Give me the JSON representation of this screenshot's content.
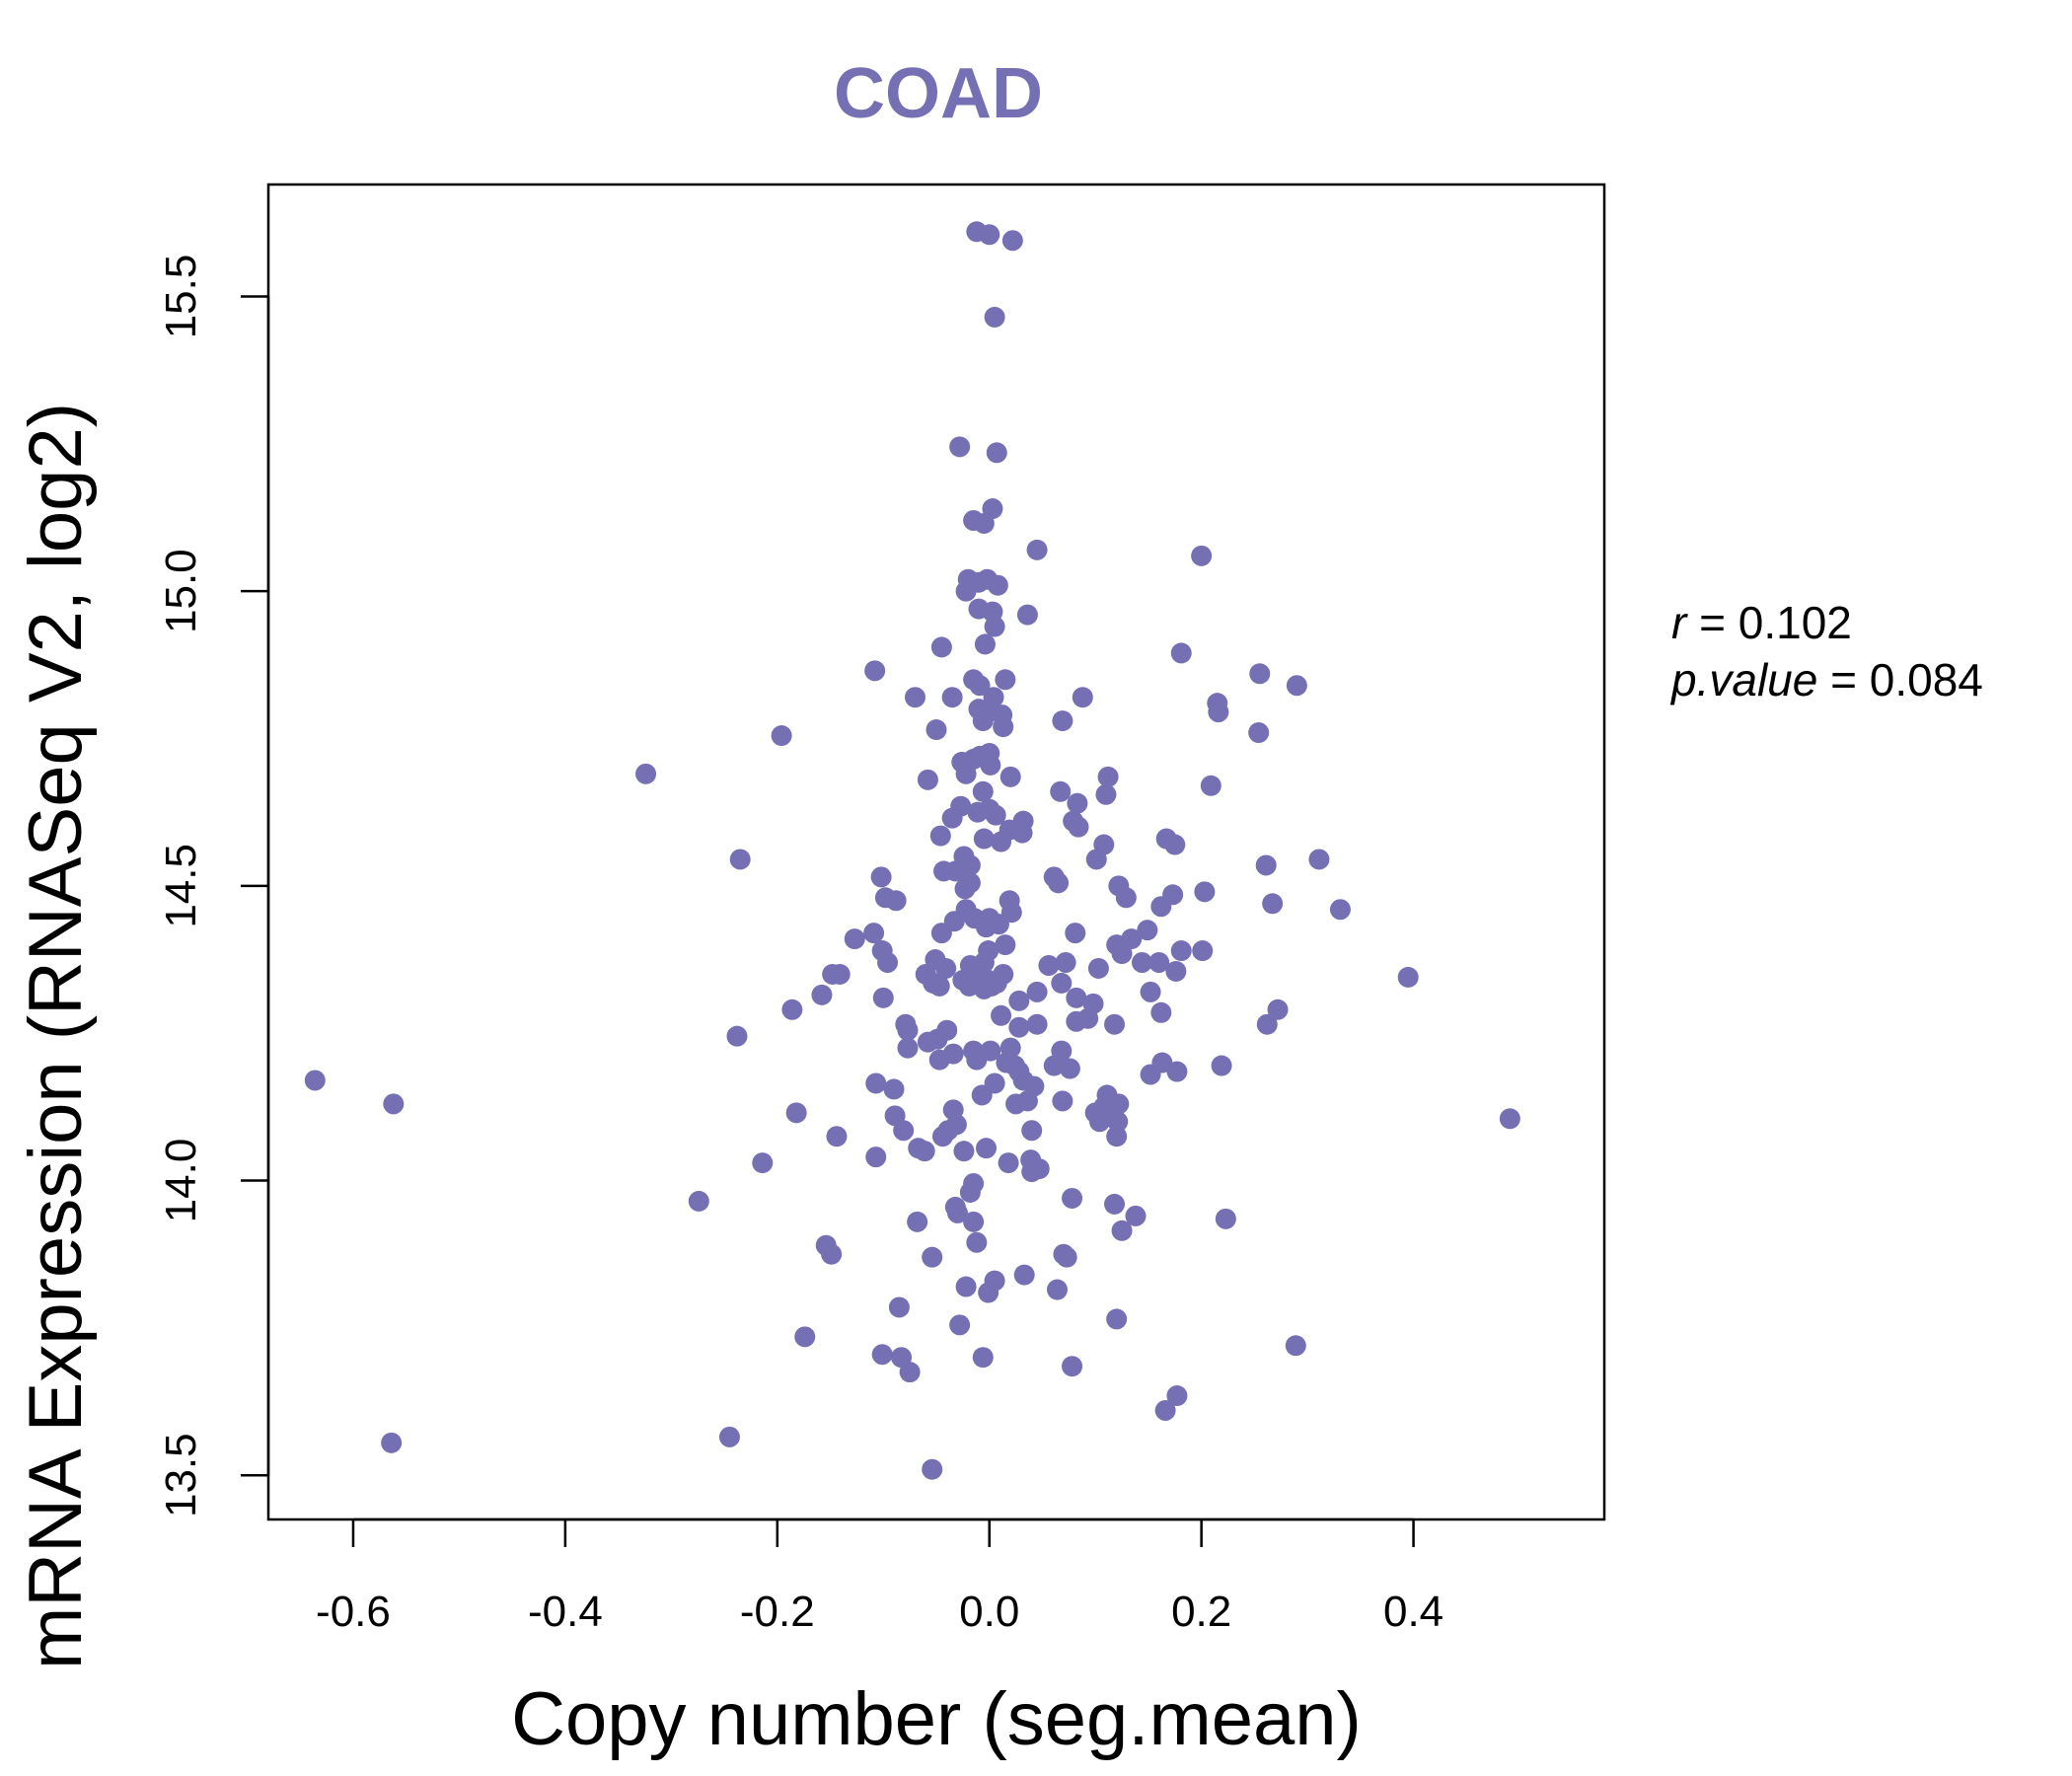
{
  "chart_data": {
    "type": "scatter",
    "title": "COAD",
    "title_color": "#7570b3",
    "point_color": "#7570b3",
    "xlabel": "Copy number (seg.mean)",
    "ylabel": "mRNA Expression (RNASeq V2, log2)",
    "xlim": [
      -0.68,
      0.58
    ],
    "ylim": [
      13.425,
      15.69
    ],
    "xticks": [
      -0.6,
      -0.4,
      -0.2,
      0.0,
      0.2,
      0.4
    ],
    "xtick_labels": [
      "-0.6",
      "-0.4",
      "-0.2",
      "0.0",
      "0.2",
      "0.4"
    ],
    "yticks": [
      13.5,
      14.0,
      14.5,
      15.0,
      15.5
    ],
    "ytick_labels": [
      "13.5",
      "14.0",
      "14.5",
      "15.0",
      "15.5"
    ],
    "stats": {
      "r_label": "r",
      "r_value": "0.102",
      "p_label": "p.value",
      "p_value": "0.084"
    },
    "points": [
      [
        -0.012,
        15.61
      ],
      [
        0.0,
        15.605
      ],
      [
        0.022,
        15.595
      ],
      [
        0.005,
        15.465
      ],
      [
        -0.028,
        15.245
      ],
      [
        0.007,
        15.235
      ],
      [
        0.003,
        15.14
      ],
      [
        -0.015,
        15.12
      ],
      [
        -0.005,
        15.115
      ],
      [
        0.045,
        15.07
      ],
      [
        0.2,
        15.06
      ],
      [
        -0.02,
        15.02
      ],
      [
        -0.01,
        15.015
      ],
      [
        -0.002,
        15.02
      ],
      [
        0.008,
        15.01
      ],
      [
        -0.022,
        15.0
      ],
      [
        -0.01,
        14.97
      ],
      [
        0.003,
        14.965
      ],
      [
        0.036,
        14.96
      ],
      [
        0.005,
        14.94
      ],
      [
        -0.004,
        14.91
      ],
      [
        -0.045,
        14.905
      ],
      [
        0.181,
        14.895
      ],
      [
        -0.108,
        14.865
      ],
      [
        0.255,
        14.86
      ],
      [
        0.29,
        14.84
      ],
      [
        -0.015,
        14.85
      ],
      [
        0.015,
        14.85
      ],
      [
        -0.009,
        14.84
      ],
      [
        -0.07,
        14.82
      ],
      [
        -0.035,
        14.82
      ],
      [
        0.004,
        14.82
      ],
      [
        0.088,
        14.82
      ],
      [
        0.215,
        14.81
      ],
      [
        0.216,
        14.795
      ],
      [
        -0.01,
        14.8
      ],
      [
        -0.001,
        14.795
      ],
      [
        0.012,
        14.79
      ],
      [
        -0.006,
        14.78
      ],
      [
        0.069,
        14.78
      ],
      [
        0.013,
        14.77
      ],
      [
        -0.05,
        14.765
      ],
      [
        0.254,
        14.76
      ],
      [
        -0.196,
        14.755
      ],
      [
        -0.009,
        14.72
      ],
      [
        -0.015,
        14.715
      ],
      [
        0.0,
        14.725
      ],
      [
        -0.026,
        14.71
      ],
      [
        0.001,
        14.705
      ],
      [
        -0.324,
        14.69
      ],
      [
        -0.022,
        14.69
      ],
      [
        0.02,
        14.685
      ],
      [
        0.112,
        14.685
      ],
      [
        -0.058,
        14.68
      ],
      [
        0.209,
        14.67
      ],
      [
        -0.006,
        14.66
      ],
      [
        0.067,
        14.66
      ],
      [
        0.11,
        14.655
      ],
      [
        0.083,
        14.64
      ],
      [
        -0.027,
        14.635
      ],
      [
        0.0,
        14.63
      ],
      [
        -0.011,
        14.625
      ],
      [
        0.006,
        14.62
      ],
      [
        -0.035,
        14.615
      ],
      [
        0.032,
        14.61
      ],
      [
        0.079,
        14.61
      ],
      [
        0.084,
        14.6
      ],
      [
        0.019,
        14.595
      ],
      [
        0.031,
        14.59
      ],
      [
        -0.046,
        14.585
      ],
      [
        -0.005,
        14.58
      ],
      [
        0.011,
        14.575
      ],
      [
        0.167,
        14.58
      ],
      [
        0.108,
        14.57
      ],
      [
        0.175,
        14.57
      ],
      [
        -0.024,
        14.55
      ],
      [
        -0.235,
        14.545
      ],
      [
        0.101,
        14.545
      ],
      [
        0.311,
        14.545
      ],
      [
        0.261,
        14.535
      ],
      [
        -0.018,
        14.535
      ],
      [
        -0.032,
        14.525
      ],
      [
        -0.043,
        14.525
      ],
      [
        0.061,
        14.515
      ],
      [
        -0.102,
        14.515
      ],
      [
        -0.018,
        14.505
      ],
      [
        0.065,
        14.505
      ],
      [
        0.122,
        14.5
      ],
      [
        -0.023,
        14.495
      ],
      [
        0.203,
        14.49
      ],
      [
        0.173,
        14.485
      ],
      [
        0.129,
        14.48
      ],
      [
        -0.098,
        14.48
      ],
      [
        -0.088,
        14.475
      ],
      [
        0.019,
        14.475
      ],
      [
        0.267,
        14.47
      ],
      [
        0.162,
        14.465
      ],
      [
        0.331,
        14.46
      ],
      [
        -0.022,
        14.46
      ],
      [
        0.021,
        14.455
      ],
      [
        0.0,
        14.445
      ],
      [
        -0.014,
        14.445
      ],
      [
        -0.033,
        14.44
      ],
      [
        0.009,
        14.435
      ],
      [
        -0.003,
        14.43
      ],
      [
        0.149,
        14.425
      ],
      [
        -0.045,
        14.42
      ],
      [
        0.081,
        14.42
      ],
      [
        -0.109,
        14.42
      ],
      [
        -0.127,
        14.41
      ],
      [
        0.134,
        14.41
      ],
      [
        0.015,
        14.4
      ],
      [
        0.12,
        14.4
      ],
      [
        0.201,
        14.39
      ],
      [
        -0.001,
        14.39
      ],
      [
        -0.101,
        14.39
      ],
      [
        0.181,
        14.39
      ],
      [
        0.125,
        14.385
      ],
      [
        -0.051,
        14.375
      ],
      [
        0.16,
        14.37
      ],
      [
        0.144,
        14.37
      ],
      [
        -0.096,
        14.37
      ],
      [
        0.072,
        14.37
      ],
      [
        -0.005,
        14.37
      ],
      [
        -0.018,
        14.365
      ],
      [
        0.056,
        14.365
      ],
      [
        -0.041,
        14.36
      ],
      [
        0.103,
        14.36
      ],
      [
        0.176,
        14.355
      ],
      [
        -0.141,
        14.35
      ],
      [
        -0.148,
        14.35
      ],
      [
        -0.06,
        14.35
      ],
      [
        0.013,
        14.35
      ],
      [
        -0.008,
        14.345
      ],
      [
        0.395,
        14.345
      ],
      [
        -0.001,
        14.34
      ],
      [
        -0.025,
        14.34
      ],
      [
        -0.053,
        14.335
      ],
      [
        0.007,
        14.335
      ],
      [
        0.068,
        14.335
      ],
      [
        -0.047,
        14.33
      ],
      [
        -0.019,
        14.33
      ],
      [
        -0.005,
        14.325
      ],
      [
        0.002,
        14.33
      ],
      [
        0.045,
        14.32
      ],
      [
        0.152,
        14.32
      ],
      [
        -0.158,
        14.315
      ],
      [
        -0.1,
        14.31
      ],
      [
        0.082,
        14.31
      ],
      [
        0.028,
        14.305
      ],
      [
        0.098,
        14.3
      ],
      [
        -0.186,
        14.29
      ],
      [
        0.272,
        14.29
      ],
      [
        0.162,
        14.285
      ],
      [
        0.011,
        14.28
      ],
      [
        0.093,
        14.275
      ],
      [
        0.082,
        14.27
      ],
      [
        0.045,
        14.265
      ],
      [
        -0.079,
        14.265
      ],
      [
        0.262,
        14.265
      ],
      [
        0.118,
        14.265
      ],
      [
        0.028,
        14.26
      ],
      [
        -0.077,
        14.255
      ],
      [
        -0.04,
        14.255
      ],
      [
        -0.238,
        14.245
      ],
      [
        -0.049,
        14.24
      ],
      [
        -0.058,
        14.235
      ],
      [
        -0.077,
        14.225
      ],
      [
        0.02,
        14.225
      ],
      [
        0.001,
        14.22
      ],
      [
        -0.015,
        14.22
      ],
      [
        0.068,
        14.22
      ],
      [
        -0.034,
        14.215
      ],
      [
        -0.047,
        14.205
      ],
      [
        -0.012,
        14.205
      ],
      [
        0.163,
        14.2
      ],
      [
        0.016,
        14.2
      ],
      [
        0.061,
        14.195
      ],
      [
        0.024,
        14.195
      ],
      [
        0.219,
        14.195
      ],
      [
        0.076,
        14.19
      ],
      [
        0.028,
        14.185
      ],
      [
        0.177,
        14.185
      ],
      [
        0.152,
        14.18
      ],
      [
        -0.636,
        14.17
      ],
      [
        0.032,
        14.17
      ],
      [
        -0.107,
        14.165
      ],
      [
        0.005,
        14.165
      ],
      [
        0.042,
        14.16
      ],
      [
        -0.09,
        14.155
      ],
      [
        -0.007,
        14.145
      ],
      [
        0.111,
        14.145
      ],
      [
        0.036,
        14.135
      ],
      [
        0.069,
        14.135
      ],
      [
        0.122,
        14.13
      ],
      [
        -0.562,
        14.13
      ],
      [
        0.025,
        14.13
      ],
      [
        0.108,
        14.125
      ],
      [
        -0.034,
        14.12
      ],
      [
        -0.182,
        14.115
      ],
      [
        0.113,
        14.12
      ],
      [
        0.1,
        14.115
      ],
      [
        0.11,
        14.11
      ],
      [
        -0.089,
        14.11
      ],
      [
        0.491,
        14.105
      ],
      [
        0.121,
        14.1
      ],
      [
        0.104,
        14.1
      ],
      [
        -0.031,
        14.095
      ],
      [
        -0.039,
        14.085
      ],
      [
        0.04,
        14.085
      ],
      [
        -0.081,
        14.085
      ],
      [
        0.12,
        14.075
      ],
      [
        -0.144,
        14.075
      ],
      [
        -0.044,
        14.075
      ],
      [
        -0.003,
        14.055
      ],
      [
        -0.067,
        14.055
      ],
      [
        -0.061,
        14.05
      ],
      [
        -0.024,
        14.05
      ],
      [
        -0.107,
        14.04
      ],
      [
        0.039,
        14.035
      ],
      [
        -0.214,
        14.03
      ],
      [
        0.018,
        14.03
      ],
      [
        0.047,
        14.02
      ],
      [
        0.04,
        14.015
      ],
      [
        -0.015,
        13.995
      ],
      [
        -0.018,
        13.98
      ],
      [
        0.078,
        13.97
      ],
      [
        -0.274,
        13.965
      ],
      [
        0.118,
        13.96
      ],
      [
        -0.032,
        13.955
      ],
      [
        -0.03,
        13.945
      ],
      [
        0.138,
        13.94
      ],
      [
        0.223,
        13.935
      ],
      [
        -0.068,
        13.93
      ],
      [
        -0.015,
        13.93
      ],
      [
        0.125,
        13.915
      ],
      [
        -0.012,
        13.895
      ],
      [
        -0.154,
        13.89
      ],
      [
        -0.149,
        13.875
      ],
      [
        0.07,
        13.875
      ],
      [
        0.073,
        13.87
      ],
      [
        -0.054,
        13.87
      ],
      [
        0.033,
        13.84
      ],
      [
        0.005,
        13.83
      ],
      [
        -0.022,
        13.82
      ],
      [
        0.064,
        13.815
      ],
      [
        -0.001,
        13.81
      ],
      [
        -0.085,
        13.785
      ],
      [
        0.12,
        13.765
      ],
      [
        -0.028,
        13.755
      ],
      [
        -0.174,
        13.735
      ],
      [
        0.289,
        13.72
      ],
      [
        -0.101,
        13.705
      ],
      [
        -0.006,
        13.7
      ],
      [
        -0.083,
        13.7
      ],
      [
        0.078,
        13.685
      ],
      [
        -0.075,
        13.675
      ],
      [
        0.177,
        13.635
      ],
      [
        0.166,
        13.61
      ],
      [
        -0.245,
        13.565
      ],
      [
        -0.564,
        13.555
      ],
      [
        -0.054,
        13.51
      ]
    ]
  }
}
